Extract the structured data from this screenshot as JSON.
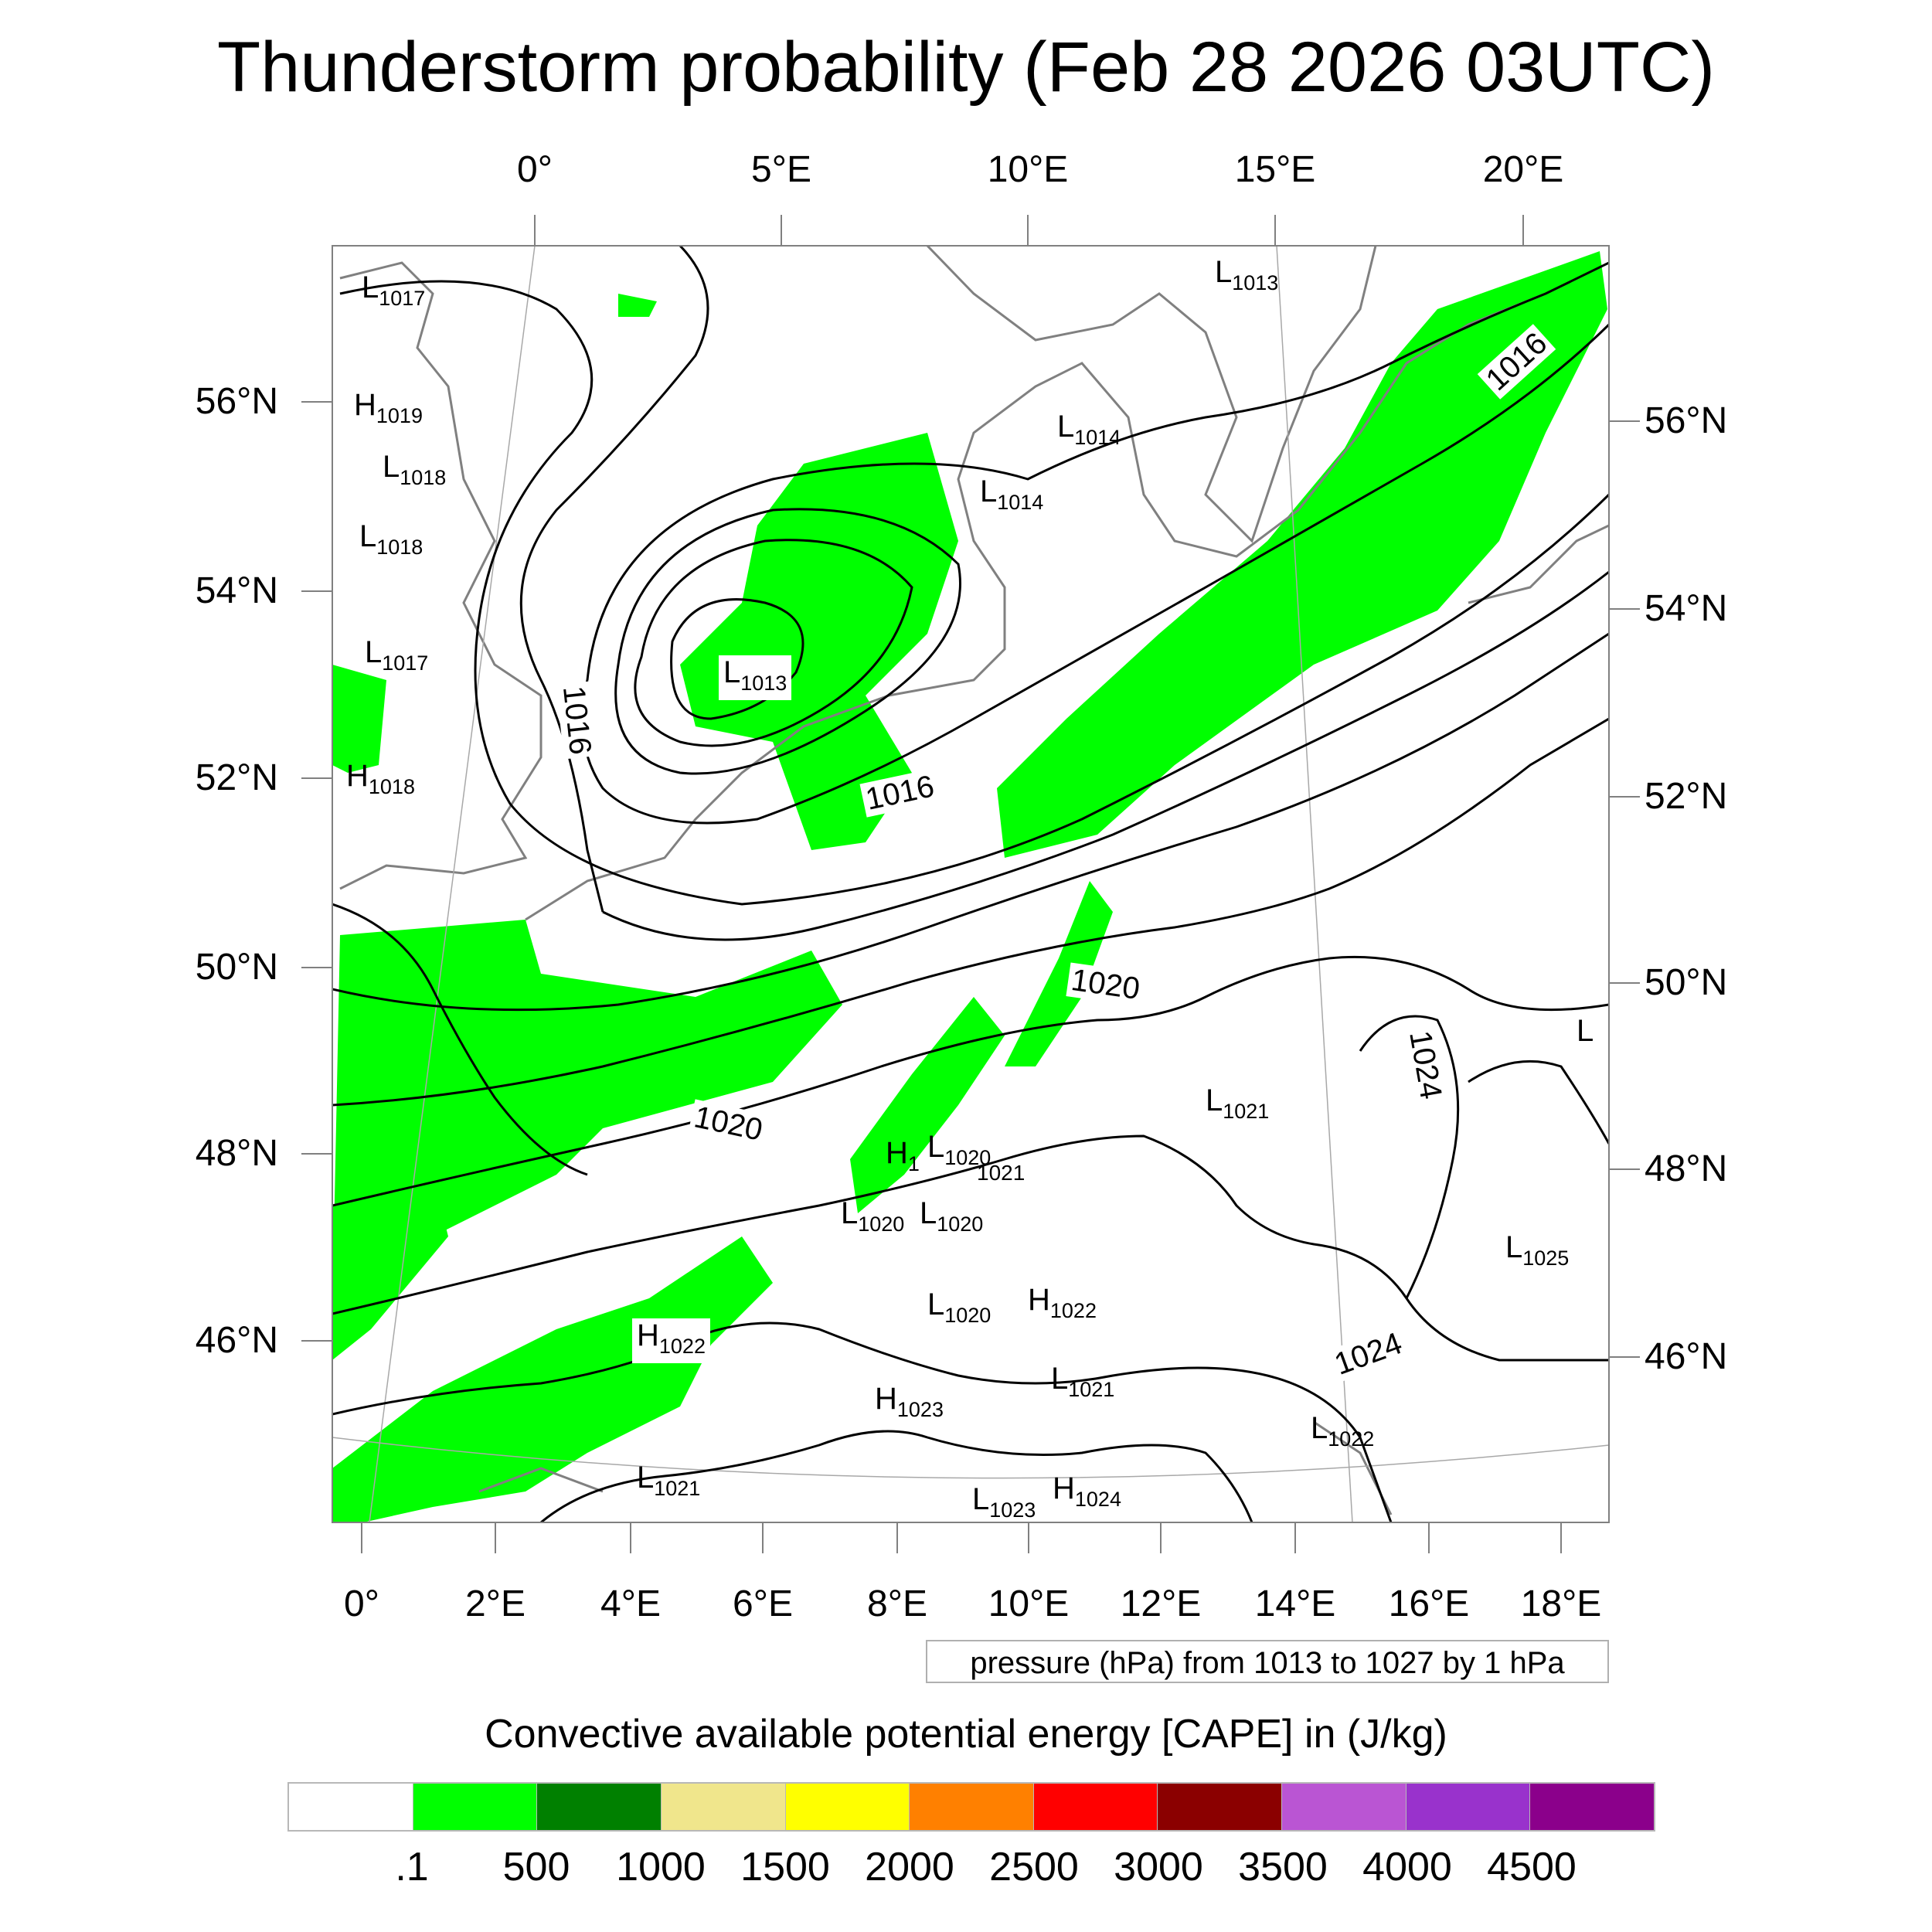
{
  "title": "Thunderstorm probability (Feb 28 2026 03UTC)",
  "axes": {
    "top_ticks": [
      "0°",
      "5°E",
      "10°E",
      "15°E",
      "20°E"
    ],
    "bottom_ticks": [
      "0°",
      "2°E",
      "4°E",
      "6°E",
      "8°E",
      "10°E",
      "12°E",
      "14°E",
      "16°E",
      "18°E"
    ],
    "left_ticks": [
      "56°N",
      "54°N",
      "52°N",
      "50°N",
      "48°N",
      "46°N"
    ],
    "right_ticks": [
      "56°N",
      "54°N",
      "52°N",
      "50°N",
      "48°N",
      "46°N"
    ]
  },
  "pressure_centers": [
    {
      "type": "L",
      "value": "1017"
    },
    {
      "type": "H",
      "value": "1019"
    },
    {
      "type": "L",
      "value": "1018"
    },
    {
      "type": "L",
      "value": "1018"
    },
    {
      "type": "L",
      "value": "1017"
    },
    {
      "type": "H",
      "value": "1018"
    },
    {
      "type": "L",
      "value": "1013"
    },
    {
      "type": "L",
      "value": "1013"
    },
    {
      "type": "L",
      "value": "1014"
    },
    {
      "type": "L",
      "value": "1014"
    },
    {
      "type": "L",
      "value": "1021"
    },
    {
      "type": "L",
      "value": ""
    },
    {
      "type": "H",
      "value": "1"
    },
    {
      "type": "L",
      "value": "1020"
    },
    {
      "type": "L",
      "value": "1020"
    },
    {
      "type": "L",
      "value": "1020"
    },
    {
      "type": "L",
      "value": "1025"
    },
    {
      "type": "L",
      "value": "1020"
    },
    {
      "type": "H",
      "value": "1022"
    },
    {
      "type": "H",
      "value": "1022"
    },
    {
      "type": "L",
      "value": "1021"
    },
    {
      "type": "H",
      "value": "1023"
    },
    {
      "type": "L",
      "value": "1022"
    },
    {
      "type": "L",
      "value": "1021"
    },
    {
      "type": "L",
      "value": "1023"
    },
    {
      "type": "H",
      "value": "1024"
    }
  ],
  "isobar_labels": [
    "1016",
    "1016",
    "1016",
    "1020",
    "1020",
    "1024",
    "1024",
    "1021"
  ],
  "contour_info": "pressure (hPa) from 1013 to 1027 by 1 hPa",
  "colorbar": {
    "title": "Convective available potential energy [CAPE] in (J/kg)",
    "labels": [
      ".1",
      "500",
      "1000",
      "1500",
      "2000",
      "2500",
      "3000",
      "3500",
      "4000",
      "4500"
    ],
    "colors": [
      "#ffffff",
      "#00ff00",
      "#008000",
      "#f0e68c",
      "#ffff00",
      "#ff8000",
      "#ff0000",
      "#8b0000",
      "#ba55d3",
      "#9932cc",
      "#8b008b"
    ]
  },
  "colors": {
    "cape_fill": "#00ff00",
    "coastline": "#808080",
    "isobar": "#000000",
    "frame": "#808080"
  }
}
